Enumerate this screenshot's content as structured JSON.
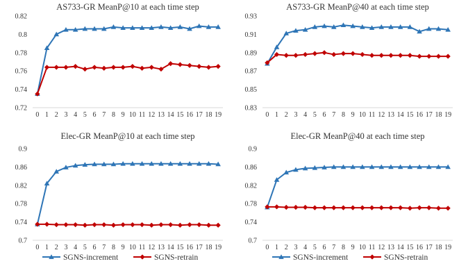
{
  "legend": {
    "series_a": "SGNS-increment",
    "series_b": "SGNS-retrain"
  },
  "colors": {
    "increment": "#2e75b6",
    "retrain": "#c00000",
    "axis": "#d9d9d9",
    "text": "#333333"
  },
  "chart_data": [
    {
      "type": "line",
      "title": "AS733-GR MeanP@10 at each time step",
      "categories": [
        "0",
        "1",
        "2",
        "3",
        "4",
        "5",
        "6",
        "7",
        "8",
        "9",
        "10",
        "11",
        "12",
        "13",
        "14",
        "15",
        "16",
        "17",
        "18",
        "19"
      ],
      "ylim": [
        0.72,
        0.82
      ],
      "yticks": [
        "0.72",
        "0.74",
        "0.76",
        "0.78",
        "0.8",
        "0.82"
      ],
      "grid": false,
      "legend_position": "bottom",
      "series": [
        {
          "name": "SGNS-increment",
          "values": [
            0.735,
            0.785,
            0.8,
            0.805,
            0.805,
            0.806,
            0.806,
            0.806,
            0.808,
            0.807,
            0.807,
            0.807,
            0.807,
            0.808,
            0.807,
            0.808,
            0.806,
            0.809,
            0.808,
            0.808
          ]
        },
        {
          "name": "SGNS-retrain",
          "values": [
            0.735,
            0.764,
            0.764,
            0.764,
            0.765,
            0.762,
            0.764,
            0.763,
            0.764,
            0.764,
            0.765,
            0.763,
            0.764,
            0.762,
            0.768,
            0.767,
            0.766,
            0.765,
            0.764,
            0.765
          ]
        }
      ]
    },
    {
      "type": "line",
      "title": "AS733-GR MeanP@40 at each time step",
      "categories": [
        "0",
        "1",
        "2",
        "3",
        "4",
        "5",
        "6",
        "7",
        "8",
        "9",
        "10",
        "11",
        "12",
        "13",
        "14",
        "15",
        "16",
        "17",
        "18",
        "19"
      ],
      "ylim": [
        0.83,
        0.93
      ],
      "yticks": [
        "0.83",
        "0.85",
        "0.87",
        "0.89",
        "0.91",
        "0.93"
      ],
      "grid": false,
      "legend_position": "bottom",
      "series": [
        {
          "name": "SGNS-increment",
          "values": [
            0.878,
            0.896,
            0.911,
            0.914,
            0.915,
            0.918,
            0.919,
            0.918,
            0.92,
            0.919,
            0.918,
            0.917,
            0.918,
            0.918,
            0.918,
            0.918,
            0.913,
            0.916,
            0.916,
            0.915
          ]
        },
        {
          "name": "SGNS-retrain",
          "values": [
            0.879,
            0.888,
            0.887,
            0.887,
            0.888,
            0.889,
            0.89,
            0.888,
            0.889,
            0.889,
            0.888,
            0.887,
            0.887,
            0.887,
            0.887,
            0.887,
            0.886,
            0.886,
            0.886,
            0.886
          ]
        }
      ]
    },
    {
      "type": "line",
      "title": "Elec-GR MeanP@10 at each time step",
      "categories": [
        "0",
        "1",
        "2",
        "3",
        "4",
        "5",
        "6",
        "7",
        "8",
        "9",
        "10",
        "11",
        "12",
        "13",
        "14",
        "15",
        "16",
        "17",
        "18",
        "19"
      ],
      "ylim": [
        0.7,
        0.9
      ],
      "yticks": [
        "0.7",
        "0.74",
        "0.78",
        "0.82",
        "0.86",
        "0.9"
      ],
      "grid": false,
      "legend_position": "bottom",
      "series": [
        {
          "name": "SGNS-increment",
          "values": [
            0.735,
            0.824,
            0.85,
            0.859,
            0.863,
            0.865,
            0.866,
            0.866,
            0.866,
            0.867,
            0.867,
            0.867,
            0.867,
            0.867,
            0.867,
            0.867,
            0.867,
            0.867,
            0.867,
            0.866
          ]
        },
        {
          "name": "SGNS-retrain",
          "values": [
            0.735,
            0.735,
            0.734,
            0.734,
            0.734,
            0.733,
            0.734,
            0.734,
            0.733,
            0.734,
            0.734,
            0.734,
            0.733,
            0.734,
            0.734,
            0.733,
            0.734,
            0.734,
            0.733,
            0.733
          ]
        }
      ]
    },
    {
      "type": "line",
      "title": "Elec-GR MeanP@40 at each time step",
      "categories": [
        "0",
        "1",
        "2",
        "3",
        "4",
        "5",
        "6",
        "7",
        "8",
        "9",
        "10",
        "11",
        "12",
        "13",
        "14",
        "15",
        "16",
        "17",
        "18",
        "19"
      ],
      "ylim": [
        0.7,
        0.9
      ],
      "yticks": [
        "0.7",
        "0.74",
        "0.78",
        "0.82",
        "0.86",
        "0.9"
      ],
      "grid": false,
      "legend_position": "bottom",
      "series": [
        {
          "name": "SGNS-increment",
          "values": [
            0.772,
            0.832,
            0.848,
            0.854,
            0.857,
            0.858,
            0.859,
            0.86,
            0.86,
            0.86,
            0.86,
            0.86,
            0.86,
            0.86,
            0.86,
            0.86,
            0.86,
            0.86,
            0.86,
            0.86
          ]
        },
        {
          "name": "SGNS-retrain",
          "values": [
            0.773,
            0.773,
            0.772,
            0.772,
            0.772,
            0.771,
            0.771,
            0.771,
            0.771,
            0.771,
            0.771,
            0.771,
            0.771,
            0.771,
            0.771,
            0.77,
            0.771,
            0.771,
            0.77,
            0.77
          ]
        }
      ]
    }
  ]
}
